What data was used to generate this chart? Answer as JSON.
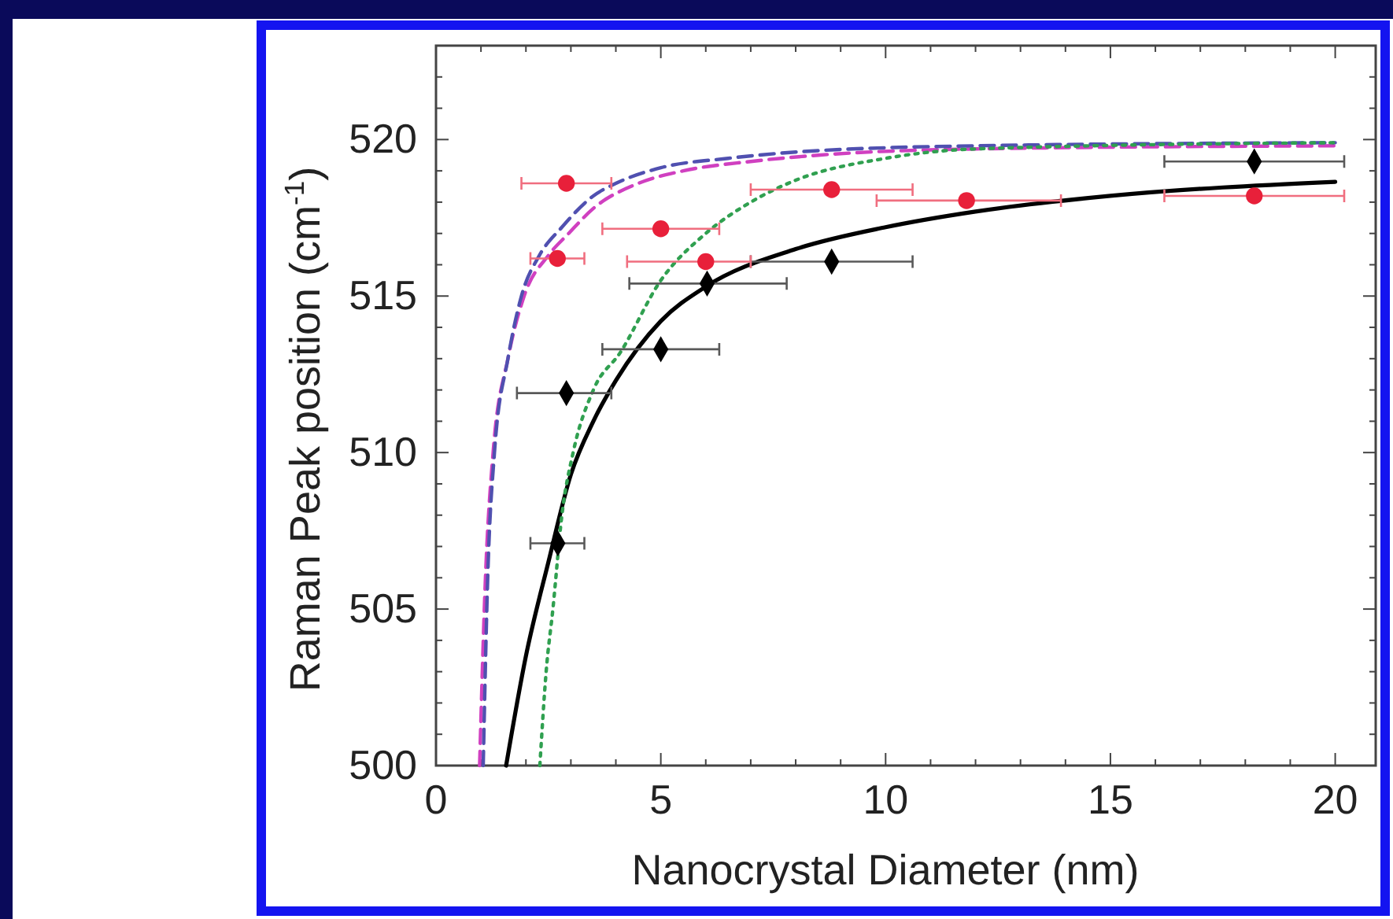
{
  "chart_data": {
    "type": "scatter",
    "xlabel": "Nanocrystal Diameter (nm)",
    "ylabel": "Raman Peak position (cm$^{-1}$)",
    "xlim": [
      0,
      20.9
    ],
    "ylim": [
      500,
      523
    ],
    "xticks": [
      0,
      {
        "value": 1,
        "label": null
      },
      {
        "value": 2,
        "label": null
      },
      {
        "value": 3,
        "label": null
      },
      {
        "value": 4,
        "label": null
      },
      5,
      {
        "value": 6,
        "label": null
      },
      {
        "value": 7,
        "label": null
      },
      {
        "value": 8,
        "label": null
      },
      {
        "value": 9,
        "label": null
      },
      10,
      {
        "value": 11,
        "label": null
      },
      {
        "value": 12,
        "label": null
      },
      {
        "value": 13,
        "label": null
      },
      {
        "value": 14,
        "label": null
      },
      15,
      {
        "value": 16,
        "label": null
      },
      {
        "value": 17,
        "label": null
      },
      {
        "value": 18,
        "label": null
      },
      {
        "value": 19,
        "label": null
      },
      20
    ],
    "yticks": [
      500,
      {
        "value": 501,
        "label": null
      },
      {
        "value": 502,
        "label": null
      },
      {
        "value": 503,
        "label": null
      },
      {
        "value": 504,
        "label": null
      },
      505,
      {
        "value": 506,
        "label": null
      },
      {
        "value": 507,
        "label": null
      },
      {
        "value": 508,
        "label": null
      },
      {
        "value": 509,
        "label": null
      },
      510,
      {
        "value": 511,
        "label": null
      },
      {
        "value": 512,
        "label": null
      },
      {
        "value": 513,
        "label": null
      },
      {
        "value": 514,
        "label": null
      },
      515,
      {
        "value": 516,
        "label": null
      },
      {
        "value": 517,
        "label": null
      },
      {
        "value": 518,
        "label": null
      },
      {
        "value": 519,
        "label": null
      },
      520,
      {
        "value": 521,
        "label": null
      },
      {
        "value": 522,
        "label": null
      }
    ],
    "grid": false,
    "series": [
      {
        "type": "line",
        "color": "#000000",
        "line_style": "solid",
        "marker": "none",
        "x": [
          1.56,
          2,
          2.5,
          3,
          3.5,
          4,
          5,
          6,
          8,
          10,
          12,
          15,
          20
        ],
        "values": [
          500,
          503.5,
          506.5,
          509.3,
          511,
          512.3,
          514.2,
          515.3,
          516.5,
          517.2,
          517.7,
          518.2,
          518.65
        ]
      },
      {
        "type": "line",
        "color": "#d040c0",
        "line_style": "dashed",
        "marker": "none",
        "x": [
          0.97,
          1.1,
          1.27,
          1.6,
          1.96,
          2.5,
          2.95,
          3.5,
          4.5,
          5.5,
          7,
          8.5,
          12,
          20
        ],
        "values": [
          500,
          506,
          510,
          513,
          515,
          516.3,
          517,
          517.8,
          518.6,
          519,
          519.3,
          519.5,
          519.7,
          519.8
        ]
      },
      {
        "type": "line",
        "color": "#5050b0",
        "line_style": "dashed",
        "marker": "none",
        "x": [
          1.05,
          1.15,
          1.3,
          1.6,
          1.9,
          2.3,
          2.8,
          3.5,
          4,
          5,
          6.5,
          8,
          12,
          20
        ],
        "values": [
          500,
          506,
          510,
          513,
          515,
          516.3,
          517.2,
          518.2,
          518.6,
          519.1,
          519.4,
          519.6,
          519.8,
          519.9
        ]
      },
      {
        "type": "line",
        "color": "#30a050",
        "line_style": "dotted",
        "marker": "none",
        "x": [
          2.31,
          2.45,
          2.6,
          2.8,
          3.05,
          3.5,
          4.1,
          5,
          6,
          7,
          8,
          10,
          12,
          20
        ],
        "values": [
          500,
          503,
          505,
          508,
          510,
          512,
          513.2,
          515.5,
          517,
          518,
          518.7,
          519.4,
          519.7,
          519.9
        ]
      },
      {
        "color": "#000000",
        "marker": "diamond",
        "x": [
          2.71,
          2.9,
          5.0,
          6.03,
          8.8,
          18.2
        ],
        "values": [
          507.1,
          511.9,
          513.3,
          515.4,
          516.1,
          519.3
        ],
        "xerrors": [
          [
            2.1,
            3.3
          ],
          [
            1.8,
            3.9
          ],
          [
            3.7,
            6.3
          ],
          [
            4.3,
            7.8
          ],
          [
            7.0,
            10.6
          ],
          [
            16.2,
            20.2
          ]
        ]
      },
      {
        "color": "#e8203a",
        "marker": "circle",
        "x": [
          2.9,
          2.7,
          5.0,
          6.0,
          8.8,
          11.8,
          18.2
        ],
        "values": [
          518.6,
          516.2,
          517.15,
          516.1,
          518.4,
          518.05,
          518.2
        ],
        "xerrors": [
          [
            1.9,
            3.9
          ],
          [
            2.1,
            3.3
          ],
          [
            3.7,
            6.3
          ],
          [
            4.25,
            7.0
          ],
          [
            7.0,
            10.6
          ],
          [
            9.8,
            13.9
          ],
          [
            16.2,
            20.2
          ]
        ]
      }
    ]
  }
}
